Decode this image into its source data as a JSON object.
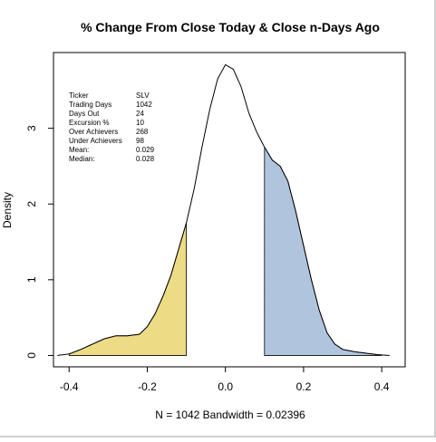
{
  "chart_data": {
    "type": "area",
    "title": "% Change From Close Today & Close n-Days Ago",
    "xlabel": "N = 1042   Bandwidth = 0.02396",
    "ylabel": "Density",
    "xlim": [
      -0.44,
      0.46
    ],
    "ylim": [
      -0.15,
      4.0
    ],
    "x_ticks": [
      -0.4,
      -0.2,
      0.0,
      0.2,
      0.4
    ],
    "x_tick_labels": [
      "-0.4",
      "-0.2",
      "0.0",
      "0.2",
      "0.4"
    ],
    "y_ticks": [
      0,
      1,
      2,
      3
    ],
    "y_tick_labels": [
      "0",
      "1",
      "2",
      "3"
    ],
    "grid": false,
    "density_curve": {
      "x": [
        -0.43,
        -0.4,
        -0.37,
        -0.34,
        -0.31,
        -0.28,
        -0.25,
        -0.22,
        -0.2,
        -0.18,
        -0.16,
        -0.14,
        -0.12,
        -0.1,
        -0.08,
        -0.06,
        -0.04,
        -0.02,
        0.0,
        0.02,
        0.04,
        0.06,
        0.08,
        0.1,
        0.12,
        0.14,
        0.16,
        0.18,
        0.2,
        0.22,
        0.24,
        0.26,
        0.28,
        0.3,
        0.33,
        0.36,
        0.39,
        0.42
      ],
      "y": [
        0.0,
        0.02,
        0.08,
        0.15,
        0.22,
        0.26,
        0.26,
        0.28,
        0.38,
        0.55,
        0.78,
        1.05,
        1.4,
        1.75,
        2.2,
        2.75,
        3.25,
        3.65,
        3.84,
        3.78,
        3.55,
        3.2,
        2.95,
        2.75,
        2.58,
        2.5,
        2.3,
        1.9,
        1.45,
        1.0,
        0.6,
        0.3,
        0.15,
        0.08,
        0.05,
        0.03,
        0.01,
        0.0
      ]
    },
    "shaded_regions": [
      {
        "name": "Under Achievers",
        "from": -0.4,
        "to": -0.1,
        "color": "#EDDC85"
      },
      {
        "name": "Over Achievers",
        "from": 0.1,
        "to": 0.4,
        "color": "#B0C4DE"
      }
    ],
    "stats_table": [
      {
        "label": "Ticker",
        "value": "SLV"
      },
      {
        "label": "Trading Days",
        "value": "1042"
      },
      {
        "label": "Days Out",
        "value": "24"
      },
      {
        "label": "Excursion %",
        "value": "10"
      },
      {
        "label": "Over Achievers",
        "value": "268"
      },
      {
        "label": "Under Achievers",
        "value": "98"
      },
      {
        "label": "Mean:",
        "value": "0.029"
      },
      {
        "label": "Median:",
        "value": "0.028"
      }
    ]
  },
  "colors": {
    "under_fill": "#EDDC85",
    "over_fill": "#B0C4DE",
    "line": "#000000",
    "background": "#ffffff"
  }
}
